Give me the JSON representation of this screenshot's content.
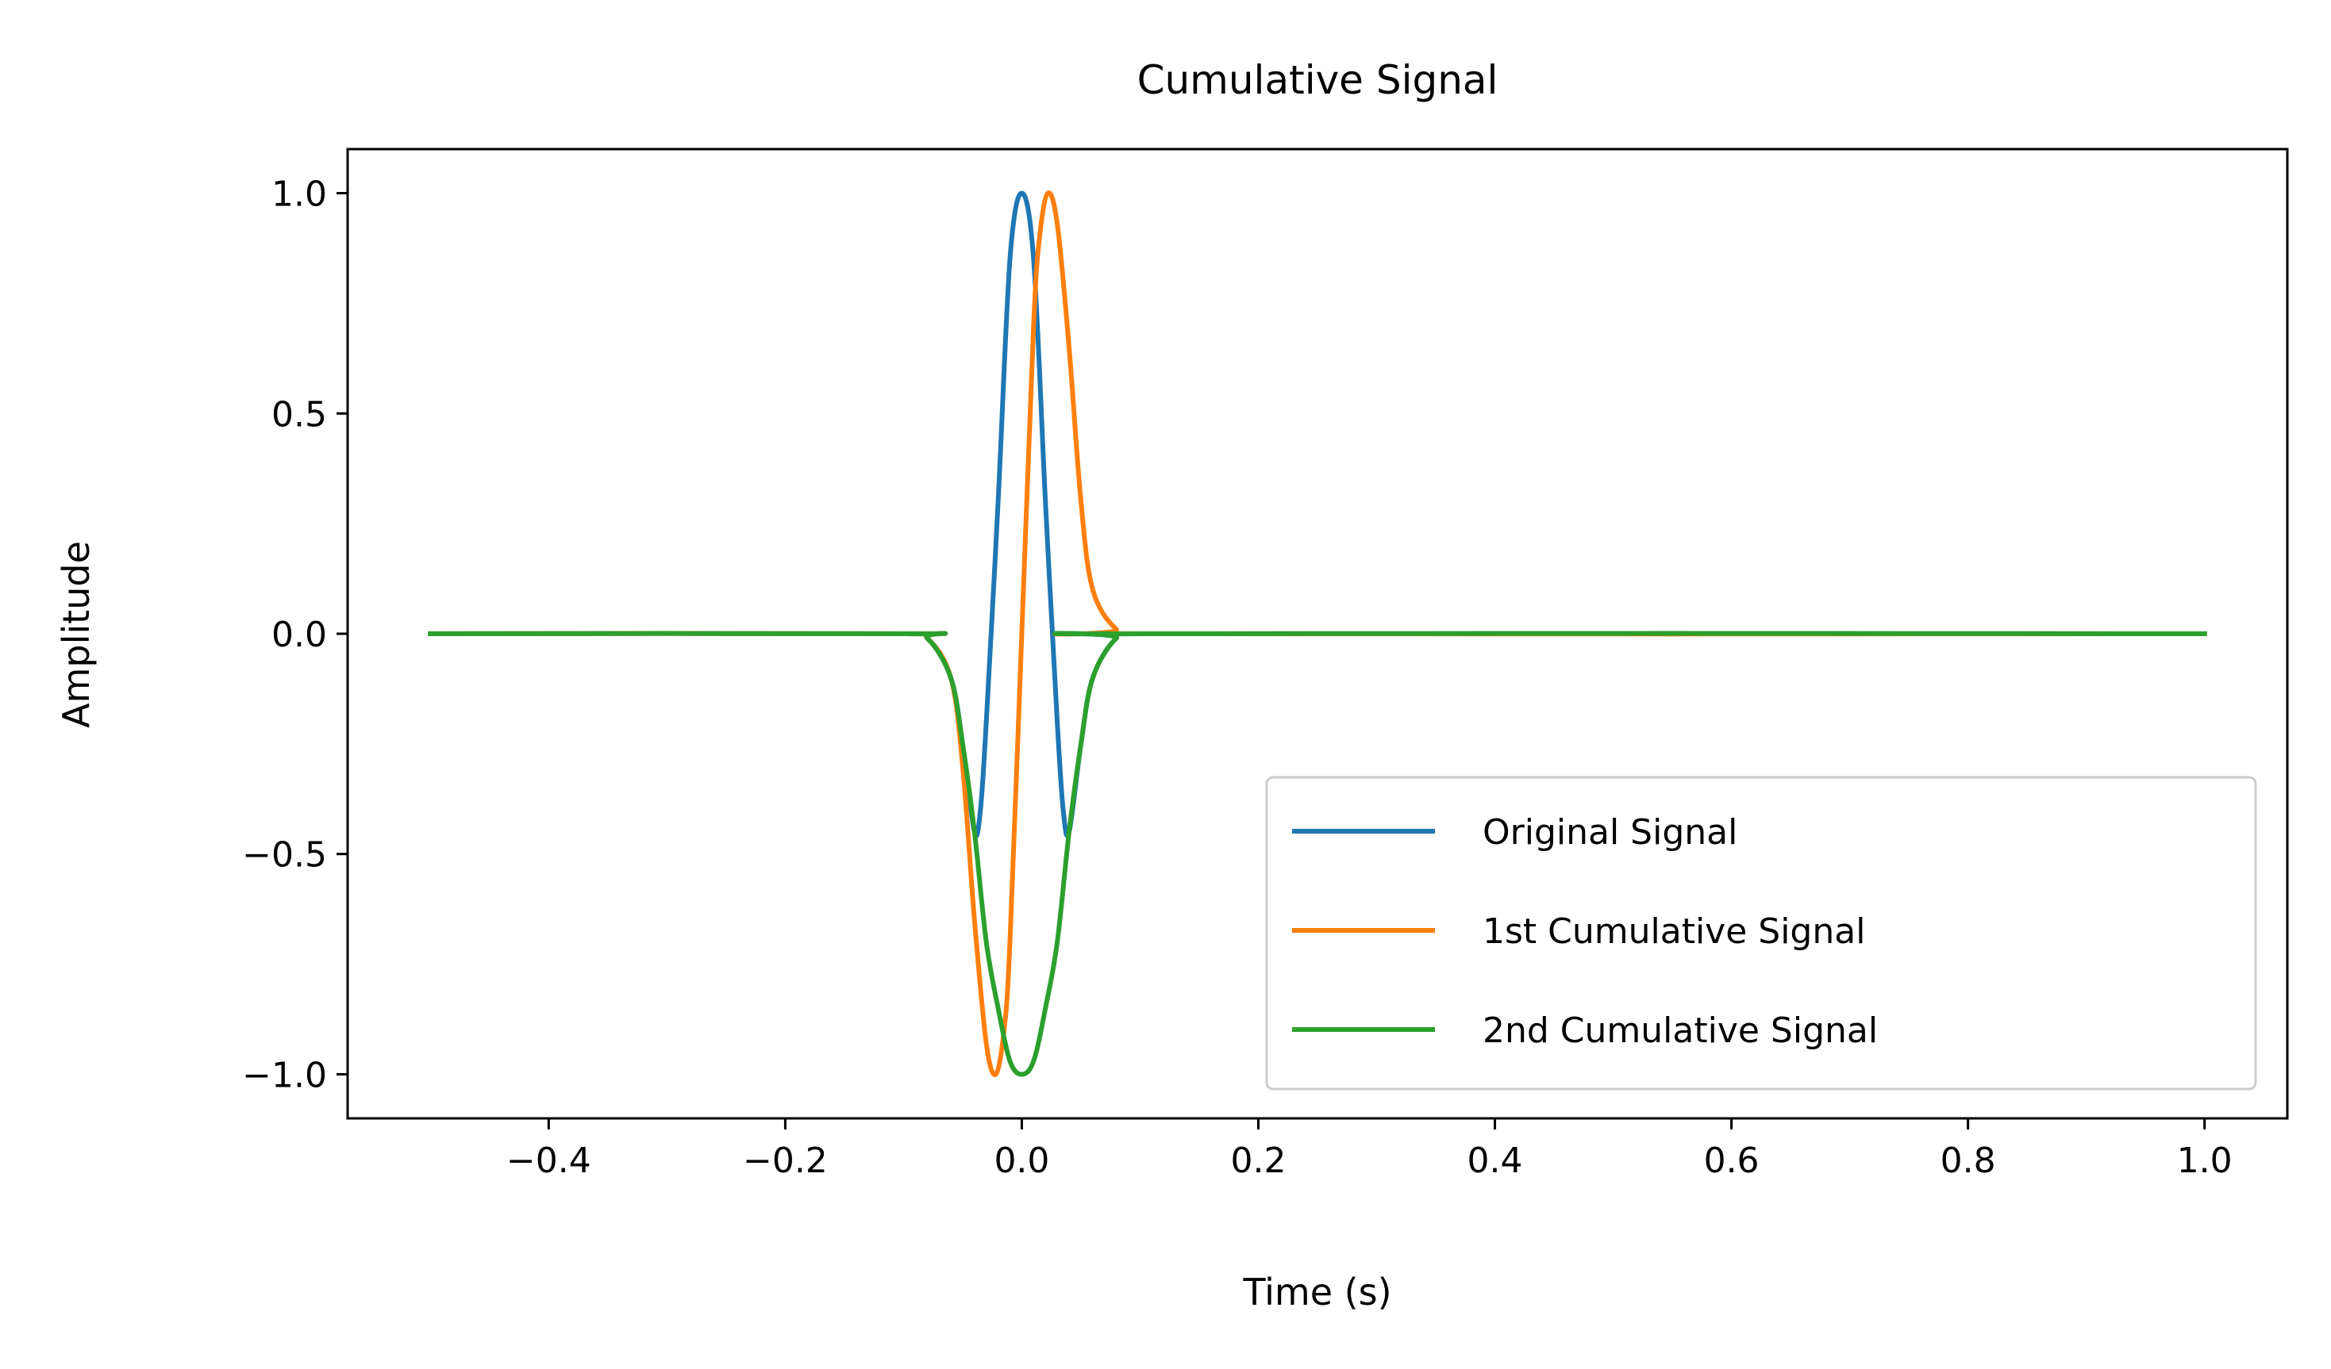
{
  "chart_data": {
    "type": "line",
    "title": "Cumulative Signal",
    "xlabel": "Time (s)",
    "ylabel": "Amplitude",
    "xlim": [
      -0.57,
      1.07
    ],
    "ylim": [
      -1.1,
      1.1
    ],
    "x_ticks": [
      -0.4,
      -0.2,
      0.0,
      0.2,
      0.4,
      0.6,
      0.8,
      1.0
    ],
    "x_tick_labels": [
      "−0.4",
      "−0.2",
      "0.0",
      "0.2",
      "0.4",
      "0.6",
      "0.8",
      "1.0"
    ],
    "y_ticks": [
      -1.0,
      -0.5,
      0.0,
      0.5,
      1.0
    ],
    "y_tick_labels": [
      "−1.0",
      "−0.5",
      "0.0",
      "0.5",
      "1.0"
    ],
    "grid": false,
    "legend_position": "lower-right",
    "series": [
      {
        "name": "Original Signal",
        "color": "#1f77b4",
        "x": [
          -0.5,
          -0.1,
          -0.08,
          -0.06,
          -0.05,
          -0.04,
          -0.035,
          -0.03,
          -0.02,
          -0.01,
          0.0,
          0.01,
          0.02,
          0.03,
          0.035,
          0.04,
          0.05,
          0.06,
          0.08,
          0.1,
          1.0
        ],
        "y": [
          0.0,
          0.0,
          -0.01,
          -0.1,
          -0.25,
          -0.45,
          -0.4,
          -0.2,
          0.3,
          0.85,
          1.0,
          0.85,
          0.3,
          -0.2,
          -0.4,
          -0.45,
          -0.25,
          -0.1,
          -0.01,
          0.0,
          0.0
        ]
      },
      {
        "name": "1st Cumulative Signal",
        "color": "#ff7f0e",
        "x": [
          -0.5,
          -0.1,
          -0.08,
          -0.06,
          -0.05,
          -0.04,
          -0.03,
          -0.022,
          -0.015,
          -0.01,
          0.0,
          0.01,
          0.015,
          0.022,
          0.03,
          0.04,
          0.05,
          0.06,
          0.08,
          0.1,
          1.0
        ],
        "y": [
          0.0,
          0.0,
          -0.01,
          -0.1,
          -0.3,
          -0.65,
          -0.93,
          -1.0,
          -0.9,
          -0.7,
          0.0,
          0.7,
          0.9,
          1.0,
          0.93,
          0.65,
          0.3,
          0.1,
          0.01,
          0.0,
          0.0
        ]
      },
      {
        "name": "2nd Cumulative Signal",
        "color": "#2ca02c",
        "x": [
          -0.5,
          -0.1,
          -0.08,
          -0.06,
          -0.05,
          -0.04,
          -0.03,
          -0.02,
          -0.01,
          0.0,
          0.01,
          0.02,
          0.03,
          0.04,
          0.05,
          0.06,
          0.08,
          0.1,
          1.0
        ],
        "y": [
          0.0,
          0.0,
          -0.01,
          -0.1,
          -0.25,
          -0.45,
          -0.7,
          -0.85,
          -0.97,
          -1.0,
          -0.97,
          -0.85,
          -0.7,
          -0.45,
          -0.25,
          -0.1,
          -0.01,
          0.0,
          0.0
        ]
      }
    ]
  }
}
